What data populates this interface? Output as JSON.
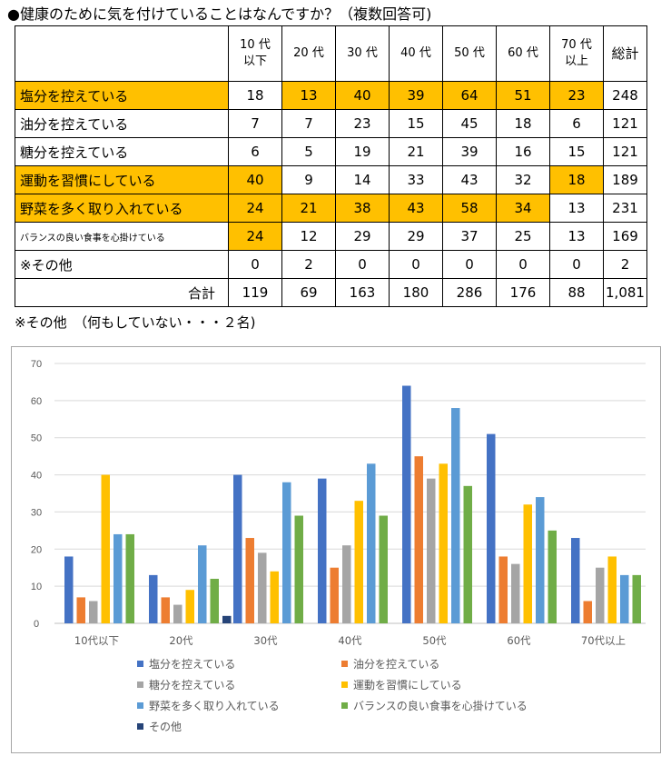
{
  "title": "●健康のために気を付けていることはなんですか？（複数回答可)",
  "table": {
    "columns": [
      {
        "line1": "10 代",
        "line2": "以下"
      },
      {
        "line1": "20 代",
        "line2": ""
      },
      {
        "line1": "30 代",
        "line2": ""
      },
      {
        "line1": "40 代",
        "line2": ""
      },
      {
        "line1": "50 代",
        "line2": ""
      },
      {
        "line1": "60 代",
        "line2": ""
      },
      {
        "line1": "70 代",
        "line2": "以上"
      },
      {
        "line1": "総計",
        "line2": ""
      }
    ],
    "rows": [
      {
        "label": "塩分を控えている",
        "values": [
          "18",
          "13",
          "40",
          "39",
          "64",
          "51",
          "23",
          "248"
        ],
        "highlight": [
          false,
          true,
          true,
          true,
          true,
          true,
          true,
          false
        ]
      },
      {
        "label": "油分を控えている",
        "values": [
          "7",
          "7",
          "23",
          "15",
          "45",
          "18",
          "6",
          "121"
        ],
        "highlight": [
          false,
          false,
          false,
          false,
          false,
          false,
          false,
          false
        ]
      },
      {
        "label": "糖分を控えている",
        "values": [
          "6",
          "5",
          "19",
          "21",
          "39",
          "16",
          "15",
          "121"
        ],
        "highlight": [
          false,
          false,
          false,
          false,
          false,
          false,
          false,
          false
        ]
      },
      {
        "label": "運動を習慣にしている",
        "values": [
          "40",
          "9",
          "14",
          "33",
          "43",
          "32",
          "18",
          "189"
        ],
        "highlight": [
          true,
          false,
          false,
          false,
          false,
          false,
          true,
          false
        ]
      },
      {
        "label": "野菜を多く取り入れている",
        "values": [
          "24",
          "21",
          "38",
          "43",
          "58",
          "34",
          "13",
          "231"
        ],
        "highlight": [
          true,
          true,
          true,
          true,
          true,
          true,
          false,
          false
        ]
      },
      {
        "label": "バランスの良い食事を心掛けている",
        "values": [
          "24",
          "12",
          "29",
          "29",
          "37",
          "25",
          "13",
          "169"
        ],
        "highlight": [
          true,
          false,
          false,
          false,
          false,
          false,
          false,
          false
        ],
        "small": true
      },
      {
        "label": "※その他",
        "values": [
          "0",
          "2",
          "0",
          "0",
          "0",
          "0",
          "0",
          "2"
        ],
        "highlight": [
          false,
          false,
          false,
          false,
          false,
          false,
          false,
          false
        ]
      }
    ],
    "total": {
      "label": "合計",
      "values": [
        "119",
        "69",
        "163",
        "180",
        "286",
        "176",
        "88",
        "1,081"
      ]
    },
    "highlight_color": "#ffc000"
  },
  "note": "※その他　（何もしていない・・・２名)",
  "chart_data": {
    "type": "bar",
    "categories": [
      "10代以下",
      "20代",
      "30代",
      "40代",
      "50代",
      "60代",
      "70代以上"
    ],
    "series": [
      {
        "name": "塩分を控えている",
        "color": "#4472c4",
        "values": [
          18,
          13,
          40,
          39,
          64,
          51,
          23
        ]
      },
      {
        "name": "油分を控えている",
        "color": "#ed7d31",
        "values": [
          7,
          7,
          23,
          15,
          45,
          18,
          6
        ]
      },
      {
        "name": "糖分を控えている",
        "color": "#a5a5a5",
        "values": [
          6,
          5,
          19,
          21,
          39,
          16,
          15
        ]
      },
      {
        "name": "運動を習慣にしている",
        "color": "#ffc000",
        "values": [
          40,
          9,
          14,
          33,
          43,
          32,
          18
        ]
      },
      {
        "name": "野菜を多く取り入れている",
        "color": "#5b9bd5",
        "values": [
          24,
          21,
          38,
          43,
          58,
          34,
          13
        ]
      },
      {
        "name": "バランスの良い食事を心掛けている",
        "color": "#70ad47",
        "values": [
          24,
          12,
          29,
          29,
          37,
          25,
          13
        ]
      },
      {
        "name": "その他",
        "color": "#264478",
        "values": [
          0,
          2,
          0,
          0,
          0,
          0,
          0
        ]
      }
    ],
    "ylim": [
      0,
      70
    ],
    "yticks": [
      0,
      10,
      20,
      30,
      40,
      50,
      60,
      70
    ],
    "grid": true,
    "legend": "bottom"
  }
}
